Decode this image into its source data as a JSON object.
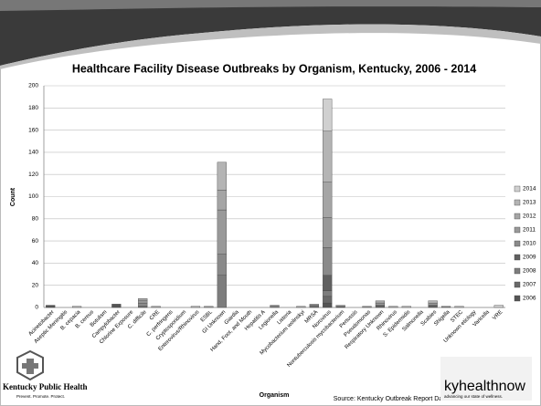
{
  "chart_data": {
    "type": "stacked-bar",
    "title": "Healthcare Facility Disease Outbreaks by Organism, Kentucky, 2006 - 2014",
    "x_label": "Organism",
    "y_label": "Count",
    "source": "Source: Kentucky Outbreak Report Database",
    "categories": [
      "Acinetobacter",
      "Aseptic Meningitis",
      "B. cepacia",
      "B. cereus",
      "Botulism",
      "Campylobacter",
      "Chlorine Exposure",
      "C. difficile",
      "CRE",
      "C. perfringens",
      "Cryptosporidium",
      "Enterovirus/Rhinovirus",
      "ESBL",
      "GI Unknown",
      "Giardia",
      "Hand, Foot, and Mouth",
      "Hepatitis A",
      "Legionella",
      "Listeria",
      "Mycobacterium wolinskyi",
      "MRSA",
      "Norovirus",
      "Nontuberculosis mycobacterium",
      "Pertussis",
      "Pseudomonas",
      "Respiratory Unknown",
      "Rhinovirus",
      "S. Epidermidis",
      "Salmonella",
      "Scabies",
      "Shigella",
      "STEC",
      "Unknown etiology",
      "Varicella",
      "VRE"
    ],
    "series": [
      {
        "name": "2006",
        "color": "#555555",
        "values": [
          2,
          0,
          0,
          0,
          0,
          3,
          0,
          0,
          0,
          0,
          0,
          0,
          0,
          0,
          0,
          0,
          0,
          0,
          0,
          0,
          0,
          4,
          1,
          0,
          0,
          0,
          0,
          0,
          0,
          0,
          0,
          0,
          0,
          0,
          0
        ]
      },
      {
        "name": "2007",
        "color": "#696969",
        "values": [
          0,
          0,
          0,
          0,
          0,
          0,
          0,
          1,
          0,
          0,
          0,
          0,
          0,
          0,
          0,
          0,
          0,
          0,
          0,
          0,
          1,
          6,
          0,
          0,
          0,
          0,
          0,
          0,
          0,
          0,
          0,
          0,
          0,
          0,
          0
        ]
      },
      {
        "name": "2008",
        "color": "#7d7d7d",
        "values": [
          0,
          0,
          0,
          0,
          0,
          0,
          0,
          0,
          0,
          0,
          0,
          0,
          0,
          29,
          0,
          0,
          0,
          1,
          0,
          0,
          0,
          5,
          0,
          0,
          0,
          0,
          0,
          0,
          0,
          0,
          1,
          0,
          0,
          0,
          0
        ]
      },
      {
        "name": "2009",
        "color": "#606060",
        "values": [
          0,
          0,
          0,
          0,
          0,
          0,
          0,
          0,
          0,
          0,
          0,
          0,
          0,
          0,
          0,
          0,
          0,
          0,
          0,
          0,
          0,
          14,
          0,
          0,
          0,
          2,
          0,
          0,
          0,
          2,
          0,
          0,
          0,
          0,
          0
        ]
      },
      {
        "name": "2010",
        "color": "#8a8a8a",
        "values": [
          0,
          0,
          0,
          0,
          0,
          0,
          0,
          3,
          0,
          0,
          0,
          0,
          0,
          19,
          0,
          0,
          0,
          0,
          0,
          0,
          1,
          25,
          0,
          0,
          1,
          0,
          0,
          0,
          0,
          0,
          0,
          0,
          0,
          0,
          0
        ]
      },
      {
        "name": "2011",
        "color": "#999999",
        "values": [
          0,
          0,
          0,
          0,
          0,
          0,
          0,
          2,
          0,
          0,
          0,
          0,
          1,
          40,
          0,
          0,
          0,
          0,
          0,
          0,
          0,
          27,
          0,
          0,
          0,
          2,
          0,
          0,
          0,
          2,
          0,
          0,
          0,
          0,
          0
        ]
      },
      {
        "name": "2012",
        "color": "#a5a5a5",
        "values": [
          0,
          0,
          0,
          0,
          0,
          0,
          0,
          2,
          1,
          0,
          0,
          0,
          0,
          18,
          0,
          0,
          0,
          1,
          0,
          1,
          0,
          32,
          0,
          0,
          0,
          2,
          1,
          0,
          0,
          0,
          0,
          0,
          0,
          0,
          0
        ]
      },
      {
        "name": "2013",
        "color": "#b4b4b4",
        "values": [
          0,
          0,
          1,
          0,
          0,
          0,
          0,
          0,
          0,
          0,
          0,
          1,
          0,
          25,
          0,
          0,
          0,
          0,
          0,
          0,
          1,
          46,
          1,
          0,
          0,
          0,
          0,
          1,
          0,
          2,
          0,
          1,
          0,
          0,
          0
        ]
      },
      {
        "name": "2014",
        "color": "#d0d0d0",
        "values": [
          0,
          0,
          0,
          0,
          0,
          0,
          0,
          0,
          0,
          0,
          0,
          0,
          0,
          0,
          0,
          0,
          0,
          0,
          0,
          0,
          0,
          29,
          0,
          0,
          0,
          0,
          0,
          0,
          0,
          0,
          0,
          0,
          0,
          0,
          2
        ]
      }
    ],
    "ylim": [
      0,
      200
    ],
    "yticks": [
      0,
      20,
      40,
      60,
      80,
      100,
      120,
      140,
      160,
      180,
      200
    ],
    "grid": true,
    "legend": "right"
  },
  "footer": {
    "left_logo": "Kentucky Public Health",
    "left_tagline": "Prevent. Promote. Protect.",
    "right_logo": "kyhealthnow",
    "right_tagline": "advancing our state of wellness."
  }
}
